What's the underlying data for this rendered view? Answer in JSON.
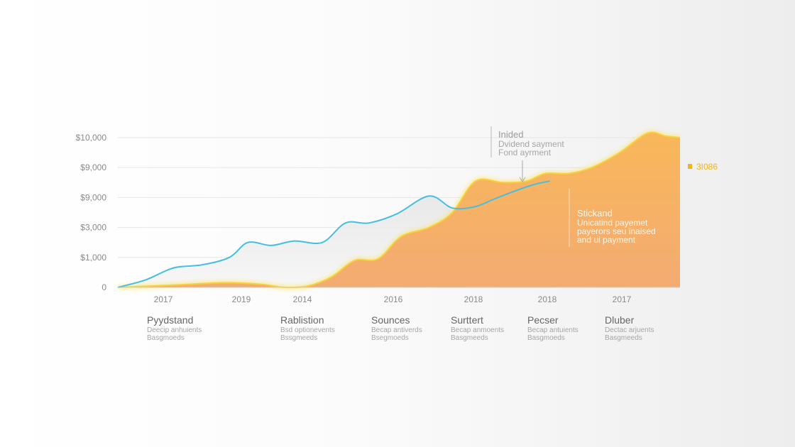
{
  "chart_data": {
    "type": "area",
    "title": "",
    "xlabel": "",
    "ylabel": "",
    "y_tick_labels": [
      "0",
      "$1,000",
      "$3,000",
      "$9,000",
      "$9,000",
      "$10,000"
    ],
    "x_tick_labels": [
      "2017",
      "2019",
      "2014",
      "2016",
      "2018",
      "2018",
      "2017"
    ],
    "ylim": [
      0,
      5
    ],
    "grid": true,
    "legend": "none",
    "series": [
      {
        "color": "#45bfe0",
        "style": "line",
        "x": [
          0.0,
          0.3,
          0.6,
          0.9,
          1.2,
          1.4,
          1.65,
          1.9,
          2.2,
          2.45,
          2.7,
          3.0,
          3.35,
          3.6,
          3.85,
          4.05,
          4.3,
          4.5,
          4.65
        ],
        "values": [
          0.0,
          0.25,
          0.65,
          0.75,
          1.0,
          1.5,
          1.4,
          1.55,
          1.5,
          2.15,
          2.15,
          2.45,
          3.05,
          2.65,
          2.7,
          2.95,
          3.25,
          3.45,
          3.55
        ]
      },
      {
        "color": "#f5a45a",
        "style": "area",
        "x": [
          0.0,
          0.4,
          0.75,
          1.05,
          1.3,
          1.55,
          1.8,
          2.05,
          2.3,
          2.55,
          2.8,
          3.05,
          3.35,
          3.6,
          3.85,
          4.15,
          4.4,
          4.6,
          4.85,
          5.1,
          5.4,
          5.7,
          5.9,
          6.05
        ],
        "values": [
          0.0,
          0.05,
          0.1,
          0.15,
          0.15,
          0.1,
          0.0,
          0.05,
          0.35,
          0.9,
          0.95,
          1.7,
          2.0,
          2.5,
          3.55,
          3.5,
          3.55,
          3.8,
          3.8,
          4.0,
          4.5,
          5.15,
          5.05,
          5.0
        ]
      }
    ],
    "annotations": {
      "top": {
        "title": "Inided",
        "lines": [
          "Dvidend sayment",
          "Fond ayrment"
        ]
      },
      "inside": {
        "title": "Stickand",
        "lines": [
          "Unicatind payemet",
          "payerors seu inaised",
          "and ui payment"
        ]
      },
      "end_label": "3I086"
    },
    "categories": [
      {
        "title": "Pyydstand",
        "lines": [
          "Deecip anhuients",
          "Basgmoeds"
        ]
      },
      {
        "title": "Rablistion",
        "lines": [
          "Bsd optionevents",
          "Bssgmeeds"
        ]
      },
      {
        "title": "Sounces",
        "lines": [
          "Becap antiverds",
          "Bsegmoeds"
        ]
      },
      {
        "title": "Surttert",
        "lines": [
          "Becap anmoents",
          "Basgmeeds"
        ]
      },
      {
        "title": "Pecser",
        "lines": [
          "Becap antuients",
          "Basgmoeds"
        ]
      },
      {
        "title": "Dluber",
        "lines": [
          "Dectac arjuents",
          "Basgmeeds"
        ]
      }
    ]
  }
}
